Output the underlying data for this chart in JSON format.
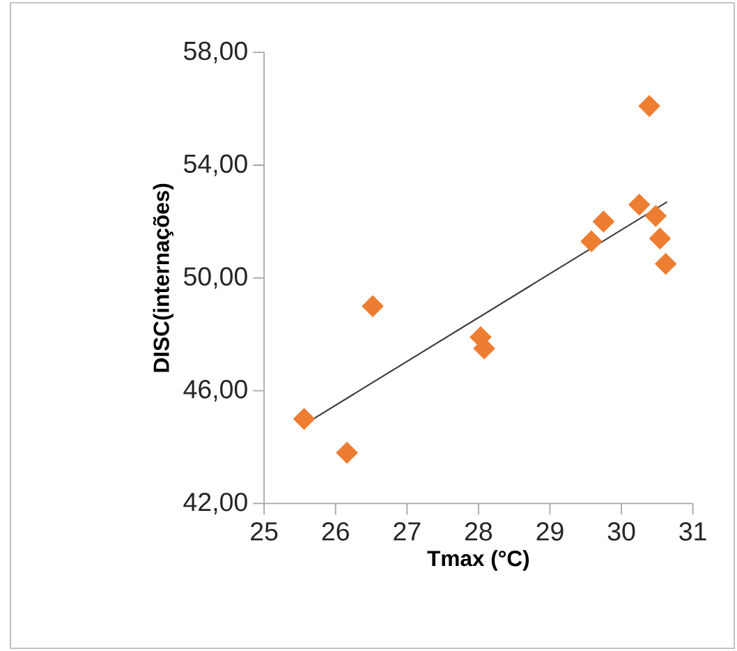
{
  "chart_data": {
    "type": "scatter",
    "xlabel": "Tmax (°C)",
    "ylabel": "DISC(internações)",
    "xlim": [
      25,
      31
    ],
    "xticks": [
      25,
      26,
      27,
      28,
      29,
      30,
      31
    ],
    "ylim": [
      42,
      58
    ],
    "yticks": [
      {
        "value": 42,
        "label": "42,00"
      },
      {
        "value": 46,
        "label": "46,00"
      },
      {
        "value": 50,
        "label": "50,00"
      },
      {
        "value": 54,
        "label": "54,00"
      },
      {
        "value": 58,
        "label": "58,00"
      }
    ],
    "series": [
      {
        "type": "scatter",
        "color": "#ed7d31",
        "marker": "diamond",
        "x": [
          25.56,
          26.16,
          26.52,
          28.03,
          28.08,
          29.58,
          29.75,
          30.25,
          30.39,
          30.48,
          30.54,
          30.62
        ],
        "values": [
          45.0,
          43.8,
          49.0,
          47.9,
          47.5,
          51.3,
          52.0,
          52.6,
          56.1,
          52.2,
          51.4,
          50.5
        ]
      },
      {
        "type": "line",
        "color": "#404040",
        "marker": "none",
        "line_style": "solid",
        "x": [
          25.56,
          30.64
        ],
        "values": [
          44.8,
          52.7
        ]
      }
    ]
  }
}
